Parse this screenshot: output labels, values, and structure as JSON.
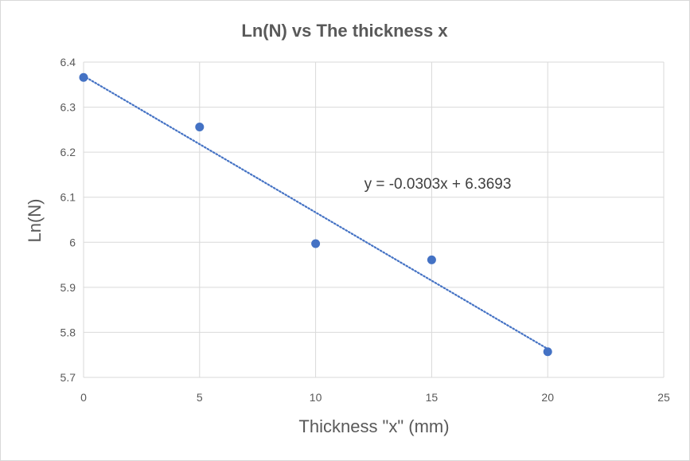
{
  "chart_data": {
    "type": "scatter",
    "title": "Ln(N) vs The thickness x",
    "xlabel": "Thickness \"x\" (mm)",
    "ylabel": "Ln(N)",
    "xlim": [
      0,
      25
    ],
    "ylim": [
      5.7,
      6.4
    ],
    "x_ticks": [
      0,
      5,
      10,
      15,
      20,
      25
    ],
    "y_ticks": [
      5.7,
      5.8,
      5.9,
      6.0,
      6.1,
      6.2,
      6.3,
      6.4
    ],
    "x_tick_labels": [
      "0",
      "5",
      "10",
      "15",
      "20",
      "25"
    ],
    "y_tick_labels": [
      "5.7",
      "5.8",
      "5.9",
      "6",
      "6.1",
      "6.2",
      "6.3",
      "6.4"
    ],
    "grid": true,
    "legend": "none",
    "series": [
      {
        "x": [
          0,
          5,
          10,
          15,
          20
        ],
        "y": [
          6.366,
          6.256,
          5.997,
          5.961,
          5.757
        ],
        "color": "#4472c4"
      }
    ],
    "trendline": {
      "type": "linear",
      "slope": -0.0303,
      "intercept": 6.3693,
      "x_range": [
        0,
        20
      ],
      "color": "#4472c4",
      "style": "dotted",
      "label": "y = -0.0303x + 6.3693"
    }
  }
}
